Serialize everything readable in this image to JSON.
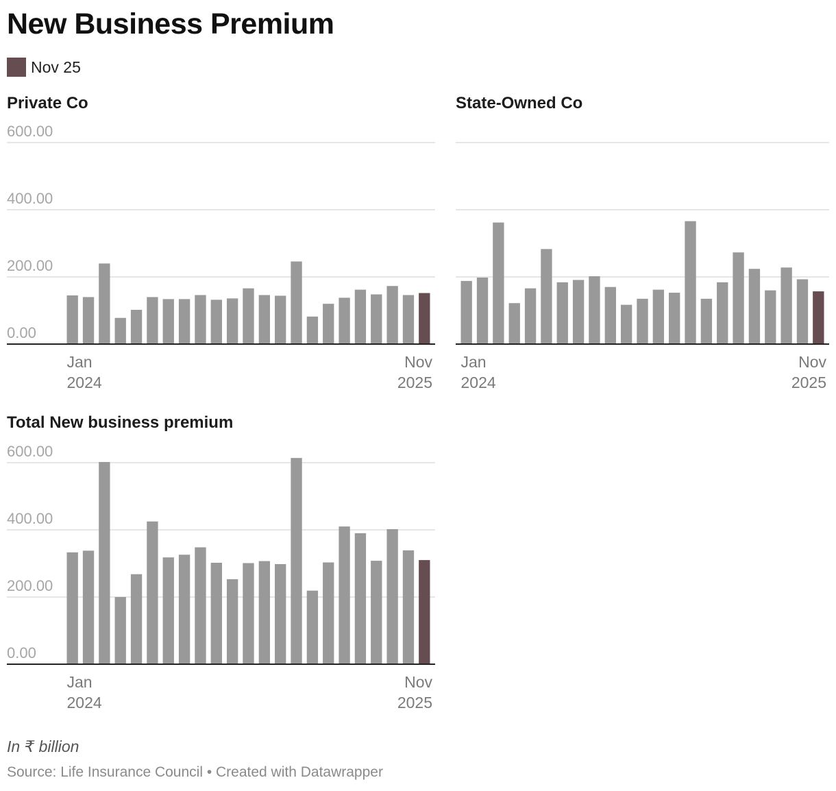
{
  "title": "New Business Premium",
  "legend": [
    {
      "label": "Nov 25",
      "color": "#664d52"
    }
  ],
  "colors": {
    "bar": "#999999",
    "highlight": "#664d52",
    "grid": "#dddddd",
    "axis": "#222222",
    "tick": "#a6a6a6",
    "xtick": "#7a7a7a"
  },
  "notes": "In ₹ billion",
  "source": "Source: Life Insurance Council • Created with Datawrapper",
  "chart_data": [
    {
      "type": "bar",
      "title": "Private Co",
      "x_tick_labels": [
        {
          "month": "Jan",
          "year": "2024",
          "index": 0
        },
        {
          "month": "Nov",
          "year": "2025",
          "index": 22
        }
      ],
      "y_ticks": [
        "600.00",
        "400.00",
        "200.00",
        "0.00"
      ],
      "ylim": [
        0,
        600
      ],
      "highlight_index": 22,
      "values": [
        145,
        140,
        240,
        78,
        102,
        140,
        134,
        134,
        146,
        132,
        136,
        166,
        146,
        144,
        246,
        82,
        120,
        138,
        162,
        148,
        173,
        146,
        152
      ]
    },
    {
      "type": "bar",
      "title": "State-Owned Co",
      "x_tick_labels": [
        {
          "month": "Jan",
          "year": "2024",
          "index": 0
        },
        {
          "month": "Nov",
          "year": "2025",
          "index": 22
        }
      ],
      "y_ticks": [
        "",
        "",
        "",
        ""
      ],
      "ylim": [
        0,
        600
      ],
      "highlight_index": 22,
      "values": [
        188,
        198,
        362,
        122,
        166,
        283,
        184,
        191,
        202,
        170,
        117,
        135,
        162,
        153,
        366,
        135,
        184,
        273,
        224,
        160,
        228,
        193,
        157
      ]
    },
    {
      "type": "bar",
      "title": "Total New business premium",
      "x_tick_labels": [
        {
          "month": "Jan",
          "year": "2024",
          "index": 0
        },
        {
          "month": "Nov",
          "year": "2025",
          "index": 22
        }
      ],
      "y_ticks": [
        "600.00",
        "400.00",
        "200.00",
        "0.00"
      ],
      "ylim": [
        0,
        600
      ],
      "highlight_index": 22,
      "values": [
        333,
        338,
        602,
        200,
        268,
        425,
        318,
        326,
        348,
        302,
        253,
        301,
        307,
        298,
        614,
        219,
        303,
        410,
        390,
        308,
        402,
        339,
        310
      ]
    }
  ]
}
